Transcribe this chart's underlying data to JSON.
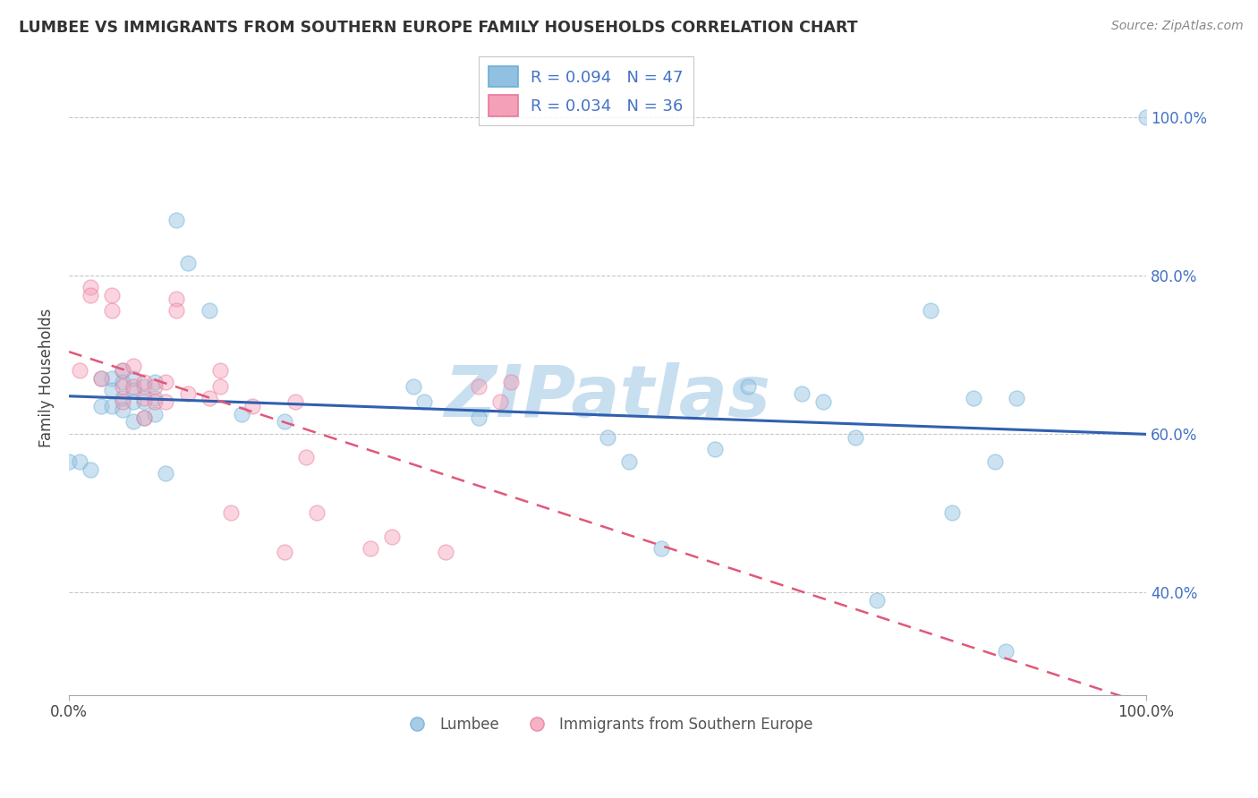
{
  "title": "LUMBEE VS IMMIGRANTS FROM SOUTHERN EUROPE FAMILY HOUSEHOLDS CORRELATION CHART",
  "source": "Source: ZipAtlas.com",
  "ylabel": "Family Households",
  "legend_bottom": [
    "Lumbee",
    "Immigrants from Southern Europe"
  ],
  "blue_color": "#92c0e0",
  "pink_color": "#f4a0b8",
  "blue_edge": "#6aaed6",
  "pink_edge": "#e87898",
  "lumbee_x": [
    0.0,
    0.01,
    0.02,
    0.03,
    0.03,
    0.04,
    0.04,
    0.04,
    0.05,
    0.05,
    0.05,
    0.05,
    0.06,
    0.06,
    0.06,
    0.06,
    0.07,
    0.07,
    0.07,
    0.08,
    0.08,
    0.08,
    0.09,
    0.1,
    0.11,
    0.13,
    0.16,
    0.2,
    0.32,
    0.33,
    0.38,
    0.5,
    0.52,
    0.55,
    0.6,
    0.63,
    0.68,
    0.7,
    0.73,
    0.75,
    0.8,
    0.82,
    0.84,
    0.86,
    0.87,
    0.88,
    1.0
  ],
  "lumbee_y": [
    0.565,
    0.565,
    0.555,
    0.67,
    0.635,
    0.67,
    0.655,
    0.635,
    0.68,
    0.665,
    0.645,
    0.63,
    0.67,
    0.655,
    0.64,
    0.615,
    0.66,
    0.64,
    0.62,
    0.665,
    0.645,
    0.625,
    0.55,
    0.87,
    0.815,
    0.755,
    0.625,
    0.615,
    0.66,
    0.64,
    0.62,
    0.595,
    0.565,
    0.455,
    0.58,
    0.66,
    0.65,
    0.64,
    0.595,
    0.39,
    0.755,
    0.5,
    0.645,
    0.565,
    0.325,
    0.645,
    1.0
  ],
  "pink_x": [
    0.01,
    0.02,
    0.02,
    0.03,
    0.04,
    0.04,
    0.05,
    0.05,
    0.05,
    0.06,
    0.06,
    0.07,
    0.07,
    0.07,
    0.08,
    0.08,
    0.09,
    0.09,
    0.1,
    0.1,
    0.11,
    0.13,
    0.14,
    0.14,
    0.15,
    0.17,
    0.2,
    0.21,
    0.22,
    0.23,
    0.28,
    0.3,
    0.35,
    0.38,
    0.4,
    0.41
  ],
  "pink_y": [
    0.68,
    0.785,
    0.775,
    0.67,
    0.775,
    0.755,
    0.68,
    0.66,
    0.64,
    0.685,
    0.66,
    0.665,
    0.645,
    0.62,
    0.66,
    0.64,
    0.665,
    0.64,
    0.77,
    0.755,
    0.65,
    0.645,
    0.68,
    0.66,
    0.5,
    0.635,
    0.45,
    0.64,
    0.57,
    0.5,
    0.455,
    0.47,
    0.45,
    0.66,
    0.64,
    0.665
  ],
  "blue_R": 0.094,
  "blue_N": 47,
  "pink_R": 0.034,
  "pink_N": 36,
  "scatter_size": 150,
  "scatter_alpha": 0.45,
  "line_color_blue": "#3060b0",
  "line_color_pink": "#e05878",
  "grid_color": "#c8c8c8",
  "background": "#ffffff",
  "watermark": "ZIPatlas",
  "watermark_color": "#c8dff0",
  "xlim": [
    0.0,
    1.0
  ],
  "ylim": [
    0.27,
    1.07
  ],
  "yticks": [
    0.4,
    0.6,
    0.8,
    1.0
  ],
  "ytick_labels": [
    "40.0%",
    "60.0%",
    "80.0%",
    "100.0%"
  ]
}
